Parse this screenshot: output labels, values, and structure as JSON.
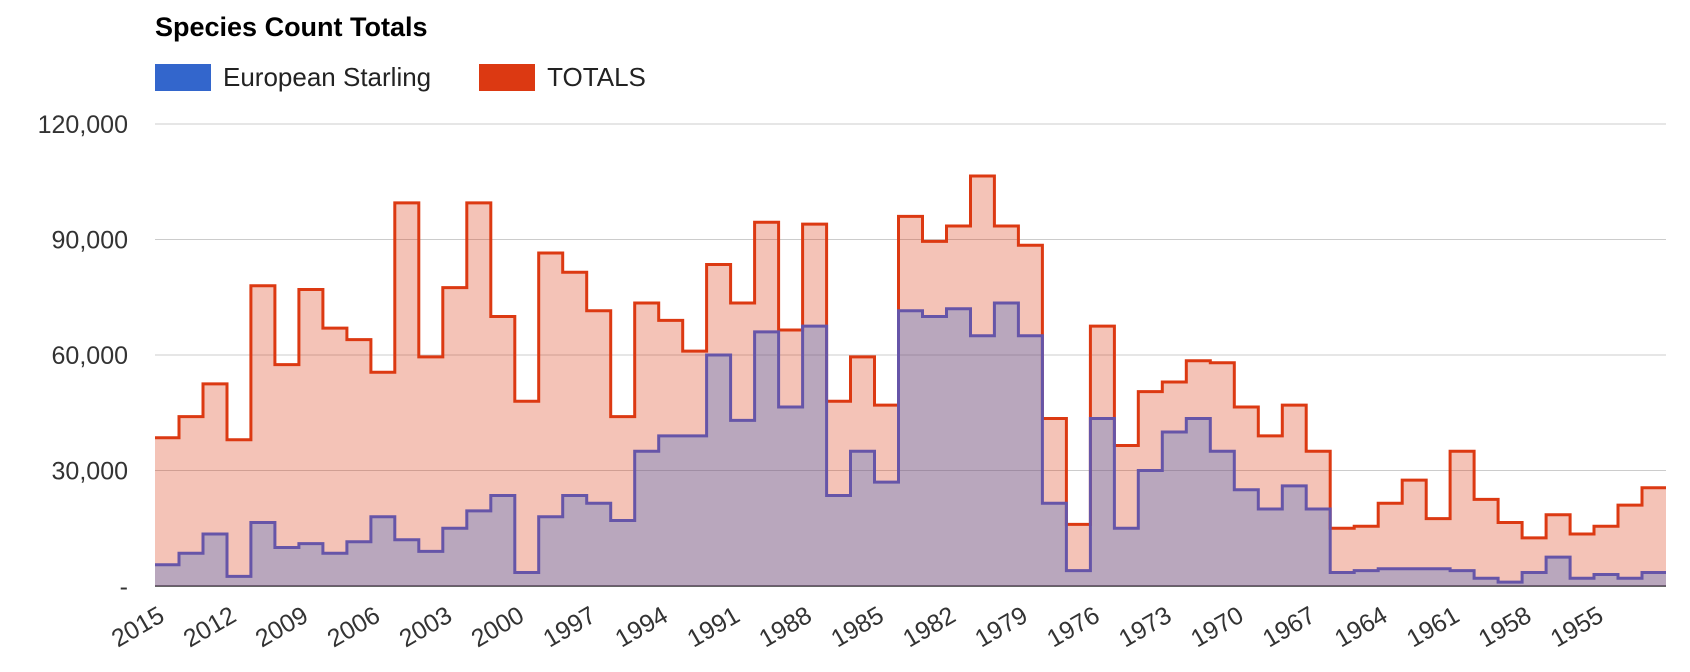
{
  "chart_data": {
    "type": "area",
    "title": "Species Count Totals",
    "xlabel": "",
    "ylabel": "",
    "ylim": [
      0,
      120000
    ],
    "y_ticks": [
      "-",
      "30,000",
      "60,000",
      "90,000",
      "120,000"
    ],
    "y_tick_values": [
      0,
      30000,
      60000,
      90000,
      120000
    ],
    "x_tick_labels": [
      "2015",
      "2012",
      "2009",
      "2006",
      "2003",
      "2000",
      "1997",
      "1994",
      "1991",
      "1988",
      "1985",
      "1982",
      "1979",
      "1976",
      "1973",
      "1970",
      "1967",
      "1964",
      "1961",
      "1958",
      "1955"
    ],
    "x_order": "descending",
    "step": true,
    "grid": true,
    "legend_position": "top-left",
    "x": [
      2015,
      2014,
      2013,
      2012,
      2011,
      2010,
      2009,
      2008,
      2007,
      2006,
      2005,
      2004,
      2003,
      2002,
      2001,
      2000,
      1999,
      1998,
      1997,
      1996,
      1995,
      1994,
      1993,
      1992,
      1991,
      1990,
      1989,
      1988,
      1987,
      1986,
      1985,
      1984,
      1983,
      1982,
      1981,
      1980,
      1979,
      1978,
      1977,
      1976,
      1975,
      1974,
      1973,
      1972,
      1971,
      1970,
      1969,
      1968,
      1967,
      1966,
      1965,
      1964,
      1963,
      1962,
      1961,
      1960,
      1959,
      1958,
      1957,
      1956,
      1955,
      1954,
      1953
    ],
    "series": [
      {
        "name": "European Starling",
        "color": "#3366cc",
        "values": [
          5500,
          8500,
          13500,
          2500,
          16500,
          10000,
          11000,
          8500,
          11500,
          18000,
          12000,
          9000,
          15000,
          19500,
          23500,
          3500,
          18000,
          23500,
          21500,
          17000,
          35000,
          39000,
          39000,
          60000,
          43000,
          66000,
          46500,
          67500,
          23500,
          35000,
          27000,
          71500,
          70000,
          72000,
          65000,
          73500,
          65000,
          21500,
          4000,
          43500,
          15000,
          30000,
          40000,
          43500,
          35000,
          25000,
          20000,
          26000,
          20000,
          3500,
          4000,
          4500,
          4500,
          4500,
          4000,
          2000,
          1000,
          3500,
          7500,
          2000,
          3000,
          2000,
          3500
        ]
      },
      {
        "name": "TOTALS",
        "color": "#dc3912",
        "values": [
          38500,
          44000,
          52500,
          38000,
          78000,
          57500,
          77000,
          67000,
          64000,
          55500,
          99500,
          59500,
          77500,
          99500,
          70000,
          48000,
          86500,
          81500,
          71500,
          44000,
          73500,
          69000,
          61000,
          83500,
          73500,
          94500,
          66500,
          94000,
          48000,
          59500,
          47000,
          96000,
          89500,
          93500,
          106500,
          93500,
          88500,
          43500,
          16000,
          67500,
          36500,
          50500,
          53000,
          58500,
          58000,
          46500,
          39000,
          47000,
          35000,
          15000,
          15500,
          21500,
          27500,
          17500,
          35000,
          22500,
          16500,
          12500,
          18500,
          13500,
          15500,
          21000,
          25500
        ]
      }
    ]
  }
}
